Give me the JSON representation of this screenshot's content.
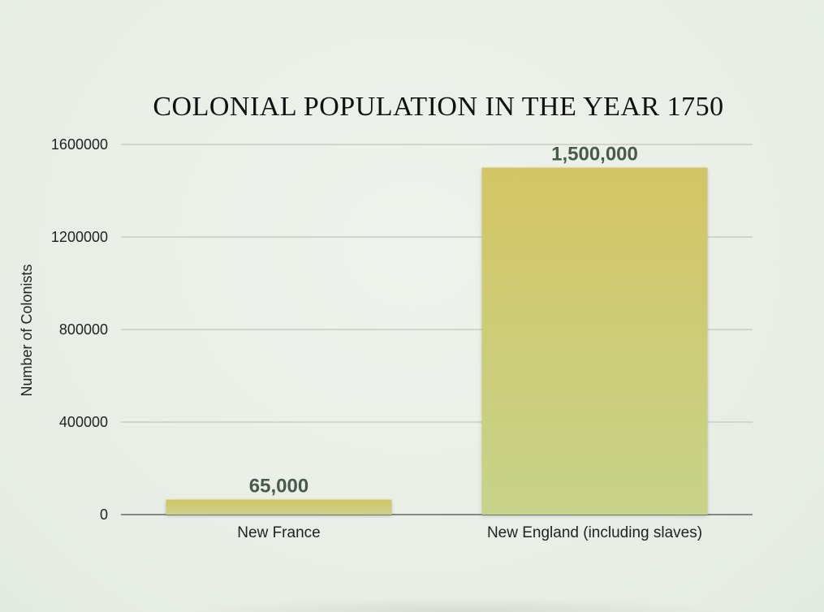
{
  "chart_data": {
    "type": "bar",
    "title": "COLONIAL POPULATION IN THE YEAR 1750",
    "xlabel": "",
    "ylabel": "Number of Colonists",
    "categories": [
      "New France",
      "New England (including slaves)"
    ],
    "values": [
      65000,
      1500000
    ],
    "data_labels": [
      "65,000",
      "1,500,000"
    ],
    "ylim": [
      0,
      1600000
    ],
    "yticks": [
      0,
      400000,
      800000,
      1200000,
      1600000
    ],
    "ytick_labels": [
      "0",
      "400000",
      "800000",
      "1200000",
      "1600000"
    ],
    "grid": true,
    "legend": "none",
    "colors": {
      "bar_top": "#d3c565",
      "bar_bottom": "#c7d38a",
      "data_label": "#4a5a4a",
      "grid": "#b5bab3",
      "background": "#e9efe7"
    }
  }
}
